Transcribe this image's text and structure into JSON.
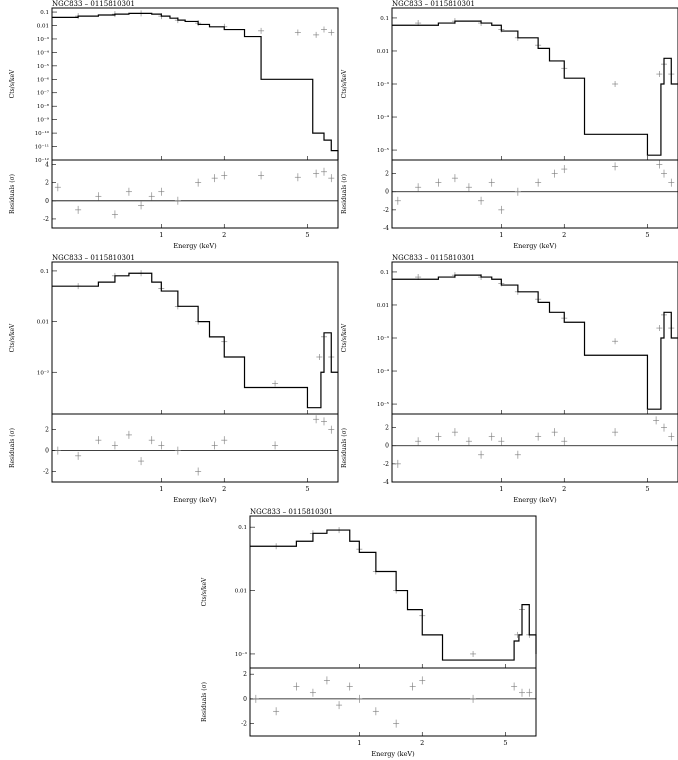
{
  "figure": {
    "panel_title": "NGC833 – 0115810301",
    "xlabel": "Energy (keV)",
    "ylabel_top": "Cts/s/keV",
    "ylabel_bottom": "Residuals (σ)",
    "x_ticks": [
      1,
      2,
      5
    ]
  },
  "chart_data": [
    {
      "type": "line",
      "title": "NGC833 – 0115810301",
      "xlabel": "Energy (keV)",
      "ylabel": "Cts/s/keV",
      "residual_ylabel": "Residuals (σ)",
      "x_scale": "log",
      "y_scale": "log",
      "xlim": [
        0.3,
        7.0
      ],
      "ylim": [
        1e-12,
        0.2
      ],
      "y_ticks": [
        0.1,
        0.01,
        0.001,
        0.0001,
        1e-05,
        1e-06,
        1e-07,
        1e-08,
        1e-09,
        1e-10,
        1e-11,
        1e-12
      ],
      "y_tick_labels": [
        "0.1",
        "0.01",
        "10⁻³",
        "10⁻⁴",
        "10⁻⁵",
        "10⁻⁶",
        "10⁻⁷",
        "10⁻⁸",
        "10⁻⁹",
        "10⁻¹⁰",
        "10⁻¹¹",
        "10⁻¹²"
      ],
      "model": {
        "x": [
          0.3,
          0.4,
          0.5,
          0.6,
          0.7,
          0.8,
          0.9,
          1.0,
          1.1,
          1.2,
          1.3,
          1.5,
          1.7,
          2.0,
          2.5,
          3.0,
          4.0,
          5.0,
          5.3,
          5.7,
          6.0,
          6.5,
          7.0
        ],
        "y": [
          0.04,
          0.05,
          0.06,
          0.07,
          0.08,
          0.08,
          0.07,
          0.05,
          0.035,
          0.025,
          0.02,
          0.012,
          0.008,
          0.005,
          0.0015,
          1e-06,
          1e-06,
          1e-06,
          1e-10,
          1e-10,
          3e-11,
          5e-12,
          1e-12
        ]
      },
      "data": {
        "x": [
          0.4,
          0.6,
          0.8,
          1.0,
          1.2,
          1.5,
          2.0,
          3.0,
          4.5,
          5.5,
          6.0,
          6.5
        ],
        "y": [
          0.05,
          0.07,
          0.08,
          0.05,
          0.025,
          0.015,
          0.008,
          0.004,
          0.003,
          0.002,
          0.005,
          0.003
        ]
      },
      "residual_ylim": [
        -3,
        4.5
      ],
      "residual_ticks": [
        -2,
        0,
        2,
        4
      ],
      "residuals": {
        "x": [
          0.32,
          0.4,
          0.5,
          0.6,
          0.7,
          0.8,
          0.9,
          1.0,
          1.2,
          1.5,
          1.8,
          2.0,
          3.0,
          4.5,
          5.5,
          6.0,
          6.5
        ],
        "y": [
          1.5,
          -1,
          0.5,
          -1.5,
          1,
          -0.5,
          0.5,
          1,
          0,
          2,
          2.5,
          2.8,
          2.8,
          2.6,
          3,
          3.2,
          2.5
        ]
      }
    },
    {
      "type": "line",
      "title": "NGC833 – 0115810301",
      "xlabel": "Energy (keV)",
      "ylabel": "Cts/s/keV",
      "residual_ylabel": "Residuals (σ)",
      "x_scale": "log",
      "y_scale": "log",
      "xlim": [
        0.3,
        7.0
      ],
      "ylim": [
        5e-06,
        0.2
      ],
      "y_ticks": [
        0.1,
        0.01,
        0.001,
        0.0001,
        1e-05
      ],
      "y_tick_labels": [
        "0.1",
        "0.01",
        "10⁻³",
        "10⁻⁴",
        "10⁻⁵"
      ],
      "model": {
        "x": [
          0.3,
          0.4,
          0.5,
          0.6,
          0.7,
          0.8,
          0.9,
          1.0,
          1.2,
          1.5,
          1.7,
          2.0,
          2.5,
          5.0,
          5.5,
          5.8,
          6.0,
          6.5,
          7.0
        ],
        "y": [
          0.06,
          0.06,
          0.07,
          0.08,
          0.08,
          0.07,
          0.06,
          0.04,
          0.025,
          0.012,
          0.005,
          0.0015,
          3e-05,
          7e-06,
          7e-06,
          0.001,
          0.006,
          0.001,
          0.001
        ]
      },
      "data": {
        "x": [
          0.4,
          0.6,
          0.8,
          1.0,
          1.2,
          1.5,
          2.0,
          3.5,
          5.7,
          6.0,
          6.5
        ],
        "y": [
          0.07,
          0.08,
          0.07,
          0.045,
          0.025,
          0.015,
          0.003,
          0.001,
          0.002,
          0.004,
          0.002
        ]
      },
      "residual_ylim": [
        -4,
        3.5
      ],
      "residual_ticks": [
        -4,
        -2,
        0,
        2
      ],
      "residuals": {
        "x": [
          0.32,
          0.4,
          0.5,
          0.6,
          0.7,
          0.8,
          0.9,
          1.0,
          1.2,
          1.5,
          1.8,
          2.0,
          3.5,
          5.7,
          6.0,
          6.5
        ],
        "y": [
          -1,
          0.5,
          1,
          1.5,
          0.5,
          -1,
          1,
          -2,
          0,
          1,
          2,
          2.5,
          2.8,
          3,
          2,
          1
        ]
      }
    },
    {
      "type": "line",
      "title": "NGC833 – 0115810301",
      "xlabel": "Energy (keV)",
      "ylabel": "Cts/s/keV",
      "residual_ylabel": "Residuals (σ)",
      "x_scale": "log",
      "y_scale": "log",
      "xlim": [
        0.3,
        7.0
      ],
      "ylim": [
        0.00015,
        0.15
      ],
      "y_ticks": [
        0.1,
        0.01,
        0.001
      ],
      "y_tick_labels": [
        "0.1",
        "0.01",
        "10⁻³"
      ],
      "model": {
        "x": [
          0.3,
          0.4,
          0.5,
          0.6,
          0.7,
          0.8,
          0.9,
          1.0,
          1.2,
          1.5,
          1.7,
          2.0,
          2.5,
          5.0,
          5.5,
          5.8,
          6.0,
          6.5,
          7.0
        ],
        "y": [
          0.05,
          0.05,
          0.06,
          0.08,
          0.09,
          0.09,
          0.06,
          0.04,
          0.02,
          0.01,
          0.005,
          0.002,
          0.0005,
          0.0002,
          0.0002,
          0.001,
          0.006,
          0.001,
          0.001
        ]
      },
      "data": {
        "x": [
          0.4,
          0.6,
          0.8,
          1.0,
          1.2,
          1.5,
          2.0,
          3.5,
          5.7,
          6.0,
          6.5
        ],
        "y": [
          0.05,
          0.08,
          0.09,
          0.045,
          0.02,
          0.01,
          0.004,
          0.0006,
          0.002,
          0.005,
          0.002
        ]
      },
      "residual_ylim": [
        -3,
        3.5
      ],
      "residual_ticks": [
        -2,
        0,
        2
      ],
      "residuals": {
        "x": [
          0.32,
          0.4,
          0.5,
          0.6,
          0.7,
          0.8,
          0.9,
          1.0,
          1.2,
          1.5,
          1.8,
          2.0,
          3.5,
          5.5,
          6.0,
          6.5
        ],
        "y": [
          0,
          -0.5,
          1,
          0.5,
          1.5,
          -1,
          1,
          0.5,
          0,
          -2,
          0.5,
          1,
          0.5,
          3,
          2.8,
          2
        ]
      }
    },
    {
      "type": "line",
      "title": "NGC833 – 0115810301",
      "xlabel": "Energy (keV)",
      "ylabel": "Cts/s/keV",
      "residual_ylabel": "Residuals (σ)",
      "x_scale": "log",
      "y_scale": "log",
      "xlim": [
        0.3,
        7.0
      ],
      "ylim": [
        5e-06,
        0.2
      ],
      "y_ticks": [
        0.1,
        0.01,
        0.001,
        0.0001,
        1e-05
      ],
      "y_tick_labels": [
        "0.1",
        "0.01",
        "10⁻³",
        "10⁻⁴",
        "10⁻⁵"
      ],
      "model": {
        "x": [
          0.3,
          0.4,
          0.5,
          0.6,
          0.7,
          0.8,
          0.9,
          1.0,
          1.2,
          1.5,
          1.7,
          2.0,
          2.5,
          5.0,
          5.5,
          5.8,
          6.0,
          6.5,
          7.0
        ],
        "y": [
          0.06,
          0.06,
          0.07,
          0.08,
          0.08,
          0.07,
          0.06,
          0.04,
          0.025,
          0.012,
          0.006,
          0.003,
          0.0003,
          7e-06,
          7e-06,
          0.001,
          0.006,
          0.001,
          0.001
        ]
      },
      "data": {
        "x": [
          0.4,
          0.6,
          0.8,
          1.0,
          1.2,
          1.5,
          2.0,
          3.5,
          5.7,
          6.0,
          6.5
        ],
        "y": [
          0.07,
          0.08,
          0.07,
          0.045,
          0.025,
          0.015,
          0.004,
          0.0008,
          0.002,
          0.005,
          0.002
        ]
      },
      "residual_ylim": [
        -4,
        3.5
      ],
      "residual_ticks": [
        -4,
        -2,
        0,
        2
      ],
      "residuals": {
        "x": [
          0.32,
          0.4,
          0.5,
          0.6,
          0.7,
          0.8,
          0.9,
          1.0,
          1.2,
          1.5,
          1.8,
          2.0,
          3.5,
          5.5,
          6.0,
          6.5
        ],
        "y": [
          -2,
          0.5,
          1,
          1.5,
          0.5,
          -1,
          1,
          0.5,
          -1,
          1,
          1.5,
          0.5,
          1.5,
          2.8,
          2,
          1
        ]
      }
    },
    {
      "type": "line",
      "title": "NGC833 – 0115810301",
      "xlabel": "Energy (keV)",
      "ylabel": "Cts/s/keV",
      "residual_ylabel": "Residuals (σ)",
      "x_scale": "log",
      "y_scale": "log",
      "xlim": [
        0.3,
        7.0
      ],
      "ylim": [
        0.0006,
        0.15
      ],
      "y_ticks": [
        0.1,
        0.01,
        0.001
      ],
      "y_tick_labels": [
        "0.1",
        "0.01",
        "10⁻³"
      ],
      "model": {
        "x": [
          0.3,
          0.4,
          0.5,
          0.6,
          0.7,
          0.8,
          0.9,
          1.0,
          1.2,
          1.5,
          1.7,
          2.0,
          2.5,
          5.0,
          5.5,
          5.8,
          6.0,
          6.5,
          7.0
        ],
        "y": [
          0.05,
          0.05,
          0.06,
          0.08,
          0.09,
          0.09,
          0.06,
          0.04,
          0.02,
          0.01,
          0.005,
          0.002,
          0.0008,
          0.0008,
          0.0016,
          0.002,
          0.006,
          0.002,
          0.001
        ]
      },
      "data": {
        "x": [
          0.4,
          0.6,
          0.8,
          1.0,
          1.2,
          1.5,
          2.0,
          3.5,
          5.7,
          6.0,
          6.5
        ],
        "y": [
          0.05,
          0.08,
          0.09,
          0.045,
          0.02,
          0.01,
          0.004,
          0.001,
          0.002,
          0.005,
          0.002
        ]
      },
      "residual_ylim": [
        -3,
        2.5
      ],
      "residual_ticks": [
        -2,
        0,
        2
      ],
      "residuals": {
        "x": [
          0.32,
          0.4,
          0.5,
          0.6,
          0.7,
          0.8,
          0.9,
          1.0,
          1.2,
          1.5,
          1.8,
          2.0,
          3.5,
          5.5,
          6.0,
          6.5
        ],
        "y": [
          0,
          -1,
          1,
          0.5,
          1.5,
          -0.5,
          1,
          0,
          -1,
          -2,
          1,
          1.5,
          0,
          1,
          0.5,
          0.5
        ]
      }
    }
  ]
}
